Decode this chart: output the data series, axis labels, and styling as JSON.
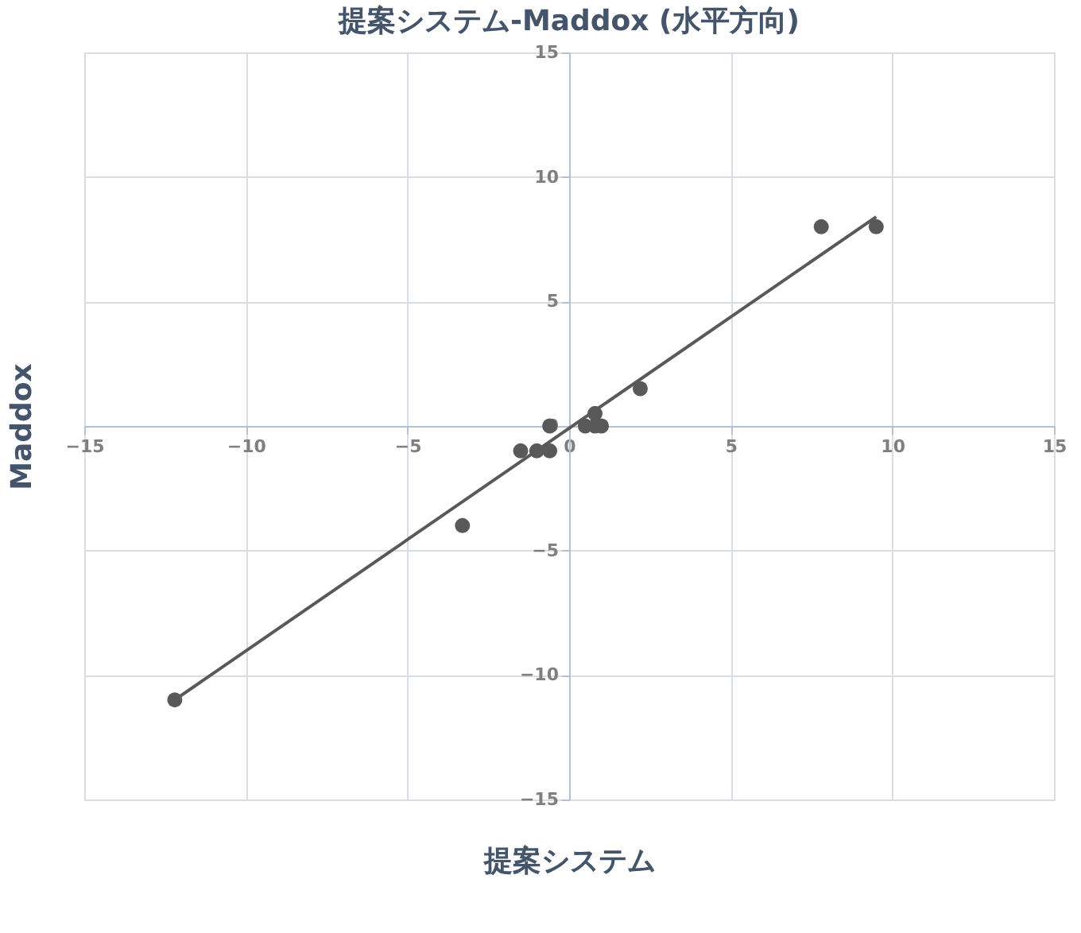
{
  "chart_data": {
    "type": "scatter",
    "title": "提案システム-Maddox (水平方向)",
    "xlabel": "提案システム",
    "ylabel": "Maddox",
    "xlim": [
      -15,
      15
    ],
    "ylim": [
      -15,
      15
    ],
    "xticks": [
      -15,
      -10,
      -5,
      0,
      5,
      10,
      15
    ],
    "yticks": [
      -15,
      -10,
      -5,
      0,
      5,
      10,
      15
    ],
    "grid": true,
    "series": [
      {
        "color": "#595959",
        "x": [
          -12.2,
          -3.3,
          -1.5,
          -1.0,
          -0.6,
          -0.6,
          0.5,
          0.8,
          1.0,
          0.8,
          2.2,
          7.8,
          9.5
        ],
        "values": [
          -11,
          -4,
          -1,
          -1,
          -1,
          0,
          0,
          0,
          0,
          0.5,
          1.5,
          8,
          8
        ]
      },
      {
        "type": "line",
        "color": "#595959",
        "x": [
          -12.2,
          9.5
        ],
        "values": [
          -11,
          8.4
        ]
      }
    ]
  }
}
